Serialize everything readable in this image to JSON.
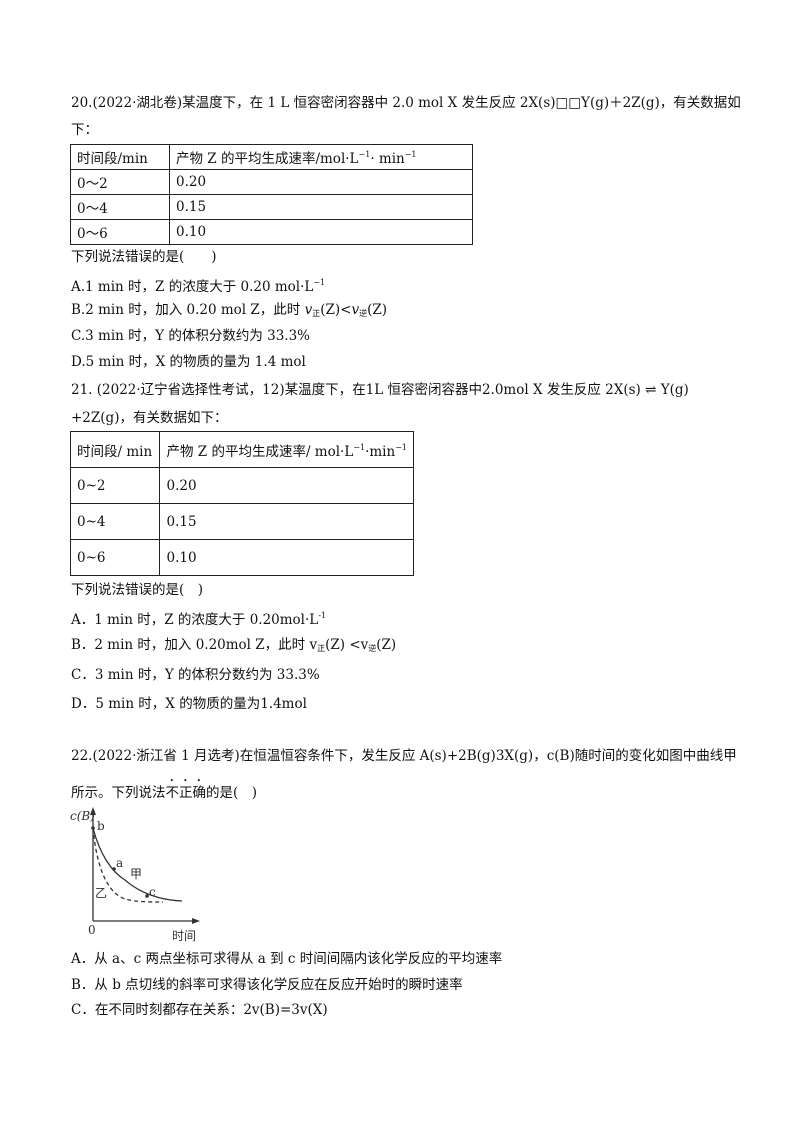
{
  "q20": {
    "stem_line1": "20.(2022·湖北卷)某温度下，在 1 L 恒容密闭容器中 2.0 mol X 发生反应 2X(s)□□Y(g)＋2Z(g)，有关数据如",
    "stem_line2": "下：",
    "table": {
      "headers": [
        "时间段/min",
        "产物 Z 的平均生成速率/mol·L",
        "−1",
        "· min",
        "−1"
      ],
      "rows": [
        [
          "0～2",
          "0.20"
        ],
        [
          "0～4",
          "0.15"
        ],
        [
          "0～6",
          "0.10"
        ]
      ]
    },
    "question": "下列说法错误的是(　　)",
    "options": {
      "A": [
        "A.1 min 时，Z 的浓度大于 0.20 mol·L",
        "−1"
      ],
      "B": [
        "B.2 min 时，加入 0.20 mol Z，此时 ",
        "v",
        "正",
        "(Z)<",
        "v",
        "逆",
        "(Z)"
      ],
      "C": "C.3 min 时，Y 的体积分数约为 33.3%",
      "D": "D.5 min 时，X 的物质的量为 1.4 mol"
    }
  },
  "q21": {
    "stem_line1": "21. (2022·辽宁省选择性考试，12)某温度下，在1L 恒容密闭容器中2.0mol X 发生反应 2X(s) ⇌ Y(g)",
    "stem_line2": "+2Z(g)，有关数据如下：",
    "table": {
      "headers": [
        "时间段/ min",
        "产物 Z 的平均生成速率/ mol·L",
        "−1",
        "·min",
        "−1"
      ],
      "rows": [
        [
          "0~2",
          "0.20"
        ],
        [
          "0~4",
          "0.15"
        ],
        [
          "0~6",
          "0.10"
        ]
      ]
    },
    "question": "下列说法错误的是(　)",
    "options": {
      "A": [
        "A．1 min 时，Z 的浓度大于 0.20mol·L",
        "-1"
      ],
      "B": [
        "B．2 min 时，加入 0.20mol Z，此时 ",
        "v",
        "正",
        "(Z) <",
        "v",
        "逆",
        "(Z)"
      ],
      "C": "C．3 min 时，Y 的体积分数约为 33.3%",
      "D": "D．5 min 时，X 的物质的量为1.4mol"
    }
  },
  "q22": {
    "stem_line1": "22.(2022·浙江省 1 月选考)在恒温恒容条件下，发生反应 A(s)+2B(g)3X(g)，c(B)随时间的变化如图中曲线甲",
    "stem_line2_pre": "所示。下列说法",
    "stem_line2_emph": "不正确",
    "stem_line2_post": "的是(　)",
    "figure": {
      "y_axis_label": "c(B)",
      "x_axis_label": "时间",
      "origin_label": "0",
      "point_labels": [
        "b",
        "a",
        "c"
      ],
      "curve_labels": [
        "甲",
        "乙"
      ]
    },
    "options": {
      "A": "A．从 a、c 两点坐标可求得从 a 到 c 时间间隔内该化学反应的平均速率",
      "B": "B．从 b 点切线的斜率可求得该化学反应在反应开始时的瞬时速率",
      "C": "C．在不同时刻都存在关系：2v(B)=3v(X)"
    }
  }
}
